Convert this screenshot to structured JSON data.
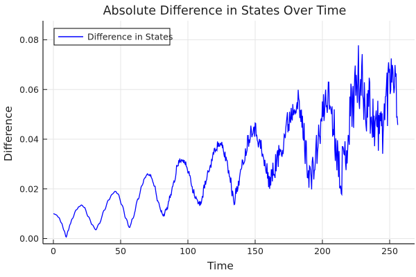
{
  "page": {
    "background": "#ffffff"
  },
  "chart_data": {
    "type": "line",
    "title": "Absolute Difference in States Over Time",
    "xlabel": "Time",
    "ylabel": "Difference",
    "xticks": [
      0,
      50,
      100,
      150,
      200,
      250
    ],
    "xtick_labels": [
      "0",
      "50",
      "100",
      "150",
      "200",
      "250"
    ],
    "yticks": [
      0,
      0.02,
      0.04,
      0.06,
      0.08
    ],
    "ytick_labels": [
      "0.00",
      "0.02",
      "0.04",
      "0.06",
      "0.08"
    ],
    "xlim": [
      -7.73,
      268.56
    ],
    "ylim": [
      -0.00209,
      0.08766
    ],
    "grid": true,
    "legend": {
      "position": "top-left",
      "background": "#ffffff",
      "border_color": "#000000"
    },
    "colors": {
      "axis": "#1a1a1a",
      "grid": "#e6e6e6",
      "text": "#1f1f1f",
      "line": "#0000ff"
    },
    "series": [
      {
        "name": "Difference in States",
        "color": "#0000ff",
        "x_range": [
          0,
          256
        ],
        "sample_step": 0.4,
        "noise_seed": 11,
        "points": [
          [
            0,
            0.01
          ],
          [
            2,
            0.0096
          ],
          [
            4,
            0.0085
          ],
          [
            6,
            0.0063
          ],
          [
            8,
            0.0032
          ],
          [
            9.5,
            0.0006
          ],
          [
            11,
            0.0032
          ],
          [
            12.5,
            0.0058
          ],
          [
            14,
            0.008
          ],
          [
            17,
            0.0115
          ],
          [
            19,
            0.0128
          ],
          [
            21,
            0.0135
          ],
          [
            23,
            0.0125
          ],
          [
            26,
            0.0088
          ],
          [
            29,
            0.0055
          ],
          [
            31.5,
            0.0035
          ],
          [
            34,
            0.006
          ],
          [
            38,
            0.0115
          ],
          [
            41,
            0.0155
          ],
          [
            44,
            0.018
          ],
          [
            46,
            0.019
          ],
          [
            48,
            0.018
          ],
          [
            51,
            0.0135
          ],
          [
            54,
            0.008
          ],
          [
            56.5,
            0.0045
          ],
          [
            59,
            0.008
          ],
          [
            63,
            0.016
          ],
          [
            66,
            0.0215
          ],
          [
            68,
            0.0245
          ],
          [
            70,
            0.026
          ],
          [
            72,
            0.0255
          ],
          [
            75,
            0.0215
          ],
          [
            78,
            0.0145
          ],
          [
            80,
            0.011
          ],
          [
            82,
            0.0095
          ],
          [
            84,
            0.0115
          ],
          [
            87,
            0.017
          ],
          [
            90,
            0.0235
          ],
          [
            92,
            0.029
          ],
          [
            94,
            0.0315
          ],
          [
            96,
            0.032
          ],
          [
            98,
            0.03
          ],
          [
            101,
            0.026
          ],
          [
            104,
            0.0195
          ],
          [
            106,
            0.016
          ],
          [
            108.5,
            0.0135
          ],
          [
            110,
            0.0155
          ],
          [
            113,
            0.022
          ],
          [
            116,
            0.028
          ],
          [
            119,
            0.034
          ],
          [
            121,
            0.037
          ],
          [
            123,
            0.038
          ],
          [
            125,
            0.037
          ],
          [
            128,
            0.033
          ],
          [
            131,
            0.026
          ],
          [
            133,
            0.019
          ],
          [
            134.5,
            0.016
          ],
          [
            136,
            0.0185
          ],
          [
            139,
            0.026
          ],
          [
            142,
            0.033
          ],
          [
            145,
            0.04
          ],
          [
            147,
            0.0435
          ],
          [
            148.5,
            0.0455
          ],
          [
            151,
            0.043
          ],
          [
            154,
            0.037
          ],
          [
            157,
            0.03
          ],
          [
            159,
            0.026
          ],
          [
            161,
            0.0235
          ],
          [
            163,
            0.026
          ],
          [
            166,
            0.031
          ],
          [
            170,
            0.038
          ],
          [
            174,
            0.046
          ],
          [
            177,
            0.051
          ],
          [
            180,
            0.056
          ],
          [
            182,
            0.054
          ],
          [
            185,
            0.046
          ],
          [
            188,
            0.034
          ],
          [
            190,
            0.027
          ],
          [
            192,
            0.024
          ],
          [
            194,
            0.03
          ],
          [
            197,
            0.039
          ],
          [
            200,
            0.049
          ],
          [
            202,
            0.055
          ],
          [
            204,
            0.058
          ],
          [
            206,
            0.054
          ],
          [
            208,
            0.047
          ],
          [
            210,
            0.039
          ],
          [
            212,
            0.031
          ],
          [
            214,
            0.027
          ],
          [
            216,
            0.031
          ],
          [
            218,
            0.038
          ],
          [
            220,
            0.047
          ],
          [
            222,
            0.055
          ],
          [
            224,
            0.06
          ],
          [
            226,
            0.063
          ],
          [
            228,
            0.065
          ],
          [
            230,
            0.06
          ],
          [
            232,
            0.056
          ],
          [
            234,
            0.057
          ],
          [
            236,
            0.052
          ],
          [
            238,
            0.048
          ],
          [
            240,
            0.046
          ],
          [
            242,
            0.044
          ],
          [
            244,
            0.045
          ],
          [
            246,
            0.05
          ],
          [
            248,
            0.058
          ],
          [
            250,
            0.066
          ],
          [
            251.5,
            0.072
          ],
          [
            253,
            0.07
          ],
          [
            254,
            0.063
          ],
          [
            255,
            0.058
          ],
          [
            256,
            0.056
          ]
        ],
        "noise_envelope": [
          [
            0,
            5e-05
          ],
          [
            50,
            0.0001
          ],
          [
            70,
            0.0003
          ],
          [
            82,
            0.0007
          ],
          [
            92,
            0.001
          ],
          [
            102,
            0.0013
          ],
          [
            112,
            0.0016
          ],
          [
            122,
            0.0018
          ],
          [
            132,
            0.0026
          ],
          [
            142,
            0.003
          ],
          [
            150,
            0.0036
          ],
          [
            158,
            0.0045
          ],
          [
            165,
            0.005
          ],
          [
            172,
            0.0055
          ],
          [
            180,
            0.006
          ],
          [
            188,
            0.007
          ],
          [
            196,
            0.0075
          ],
          [
            204,
            0.008
          ],
          [
            212,
            0.009
          ],
          [
            218,
            0.011
          ],
          [
            222,
            0.014
          ],
          [
            228,
            0.015
          ],
          [
            234,
            0.0135
          ],
          [
            240,
            0.012
          ],
          [
            245,
            0.013
          ],
          [
            250,
            0.014
          ],
          [
            253,
            0.0135
          ],
          [
            256,
            0.011
          ]
        ]
      }
    ]
  }
}
